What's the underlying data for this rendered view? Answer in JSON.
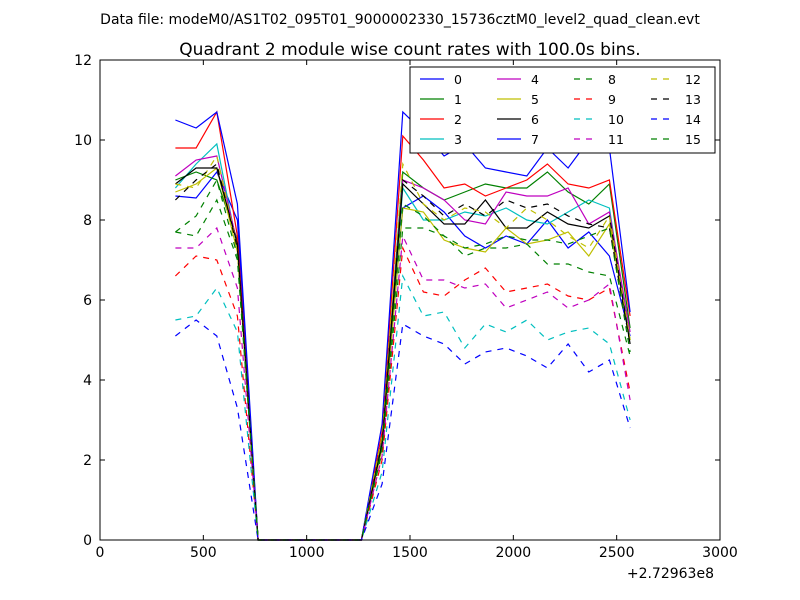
{
  "figure": {
    "suptitle": "Data file: modeM0/AS1T02_095T01_9000002330_15736cztM0_level2_quad_clean.evt",
    "title": "Quadrant 2 module wise count rates with 100.0s bins.",
    "offset_label": "+2.72963e8"
  },
  "chart_data": {
    "type": "line",
    "title": "Quadrant 2 module wise count rates with 100.0s bins.",
    "xlabel": "",
    "ylabel": "",
    "xlim": [
      0,
      3000
    ],
    "ylim": [
      0,
      12
    ],
    "x_offset": "+2.72963e8",
    "xticks": [
      0,
      500,
      1000,
      1500,
      2000,
      2500,
      3000
    ],
    "yticks": [
      0,
      2,
      4,
      6,
      8,
      10,
      12
    ],
    "grid": false,
    "legend_position": "top-right",
    "legend_columns": 4,
    "x": [
      365,
      465,
      565,
      665,
      765,
      865,
      965,
      1065,
      1165,
      1265,
      1365,
      1465,
      1565,
      1665,
      1765,
      1865,
      1965,
      2065,
      2165,
      2265,
      2365,
      2465,
      2565
    ],
    "series": [
      {
        "name": "0",
        "color": "#0000ff",
        "dash": "solid",
        "values": [
          8.6,
          8.55,
          9.2,
          8.0,
          0,
          0,
          0,
          0,
          0,
          0,
          2.5,
          8.3,
          8.6,
          8.2,
          7.6,
          7.3,
          7.6,
          7.4,
          8.0,
          7.3,
          7.7,
          7.1,
          5.1
        ]
      },
      {
        "name": "1",
        "color": "#008000",
        "dash": "solid",
        "values": [
          9.0,
          9.2,
          9.0,
          7.5,
          0,
          0,
          0,
          0,
          0,
          0,
          2.5,
          9.2,
          8.8,
          8.5,
          8.7,
          8.9,
          8.8,
          8.8,
          9.2,
          8.7,
          8.4,
          8.9,
          5.3
        ]
      },
      {
        "name": "2",
        "color": "#ff0000",
        "dash": "solid",
        "values": [
          9.8,
          9.8,
          10.7,
          7.6,
          0,
          0,
          0,
          0,
          0,
          0,
          2.7,
          10.1,
          9.5,
          8.8,
          8.9,
          8.6,
          8.8,
          9.0,
          9.4,
          8.9,
          8.8,
          9.0,
          5.6
        ]
      },
      {
        "name": "3",
        "color": "#00bfbf",
        "dash": "solid",
        "values": [
          8.8,
          9.4,
          9.9,
          7.3,
          0,
          0,
          0,
          0,
          0,
          0,
          2.4,
          8.8,
          8.0,
          8.0,
          8.2,
          8.1,
          8.3,
          8.0,
          7.9,
          8.2,
          8.5,
          8.3,
          5.0
        ]
      },
      {
        "name": "4",
        "color": "#bf00bf",
        "dash": "solid",
        "values": [
          9.1,
          9.5,
          9.6,
          7.4,
          0,
          0,
          0,
          0,
          0,
          0,
          2.4,
          9.0,
          8.8,
          8.5,
          8.0,
          7.9,
          8.7,
          8.6,
          8.6,
          8.8,
          7.9,
          8.2,
          5.2
        ]
      },
      {
        "name": "5",
        "color": "#bfbf00",
        "dash": "solid",
        "values": [
          8.7,
          8.9,
          9.3,
          7.2,
          0,
          0,
          0,
          0,
          0,
          0,
          2.3,
          8.3,
          8.2,
          7.5,
          7.3,
          7.2,
          7.8,
          7.4,
          7.5,
          7.7,
          7.1,
          7.9,
          5.0
        ]
      },
      {
        "name": "6",
        "color": "#000000",
        "dash": "solid",
        "values": [
          8.9,
          9.3,
          9.3,
          7.4,
          0,
          0,
          0,
          0,
          0,
          0,
          2.4,
          8.9,
          8.4,
          7.9,
          7.9,
          8.5,
          7.8,
          7.8,
          8.2,
          7.9,
          7.8,
          8.1,
          4.9
        ]
      },
      {
        "name": "7",
        "color": "#0000ff",
        "dash": "solid",
        "values": [
          10.5,
          10.3,
          10.7,
          8.4,
          0,
          0,
          0,
          0,
          0,
          0,
          2.9,
          10.7,
          10.2,
          9.6,
          9.9,
          9.3,
          9.2,
          9.1,
          9.8,
          9.3,
          10.0,
          9.8,
          5.7
        ]
      },
      {
        "name": "8",
        "color": "#008000",
        "dash": "dashed",
        "values": [
          7.7,
          7.6,
          8.5,
          7.0,
          0,
          0,
          0,
          0,
          0,
          0,
          2.2,
          7.8,
          7.8,
          7.6,
          7.1,
          7.3,
          7.3,
          7.4,
          6.9,
          6.9,
          6.7,
          6.6,
          4.6
        ]
      },
      {
        "name": "9",
        "color": "#ff0000",
        "dash": "dashed",
        "values": [
          6.6,
          7.1,
          7.0,
          5.6,
          0,
          0,
          0,
          0,
          0,
          0,
          2.0,
          7.3,
          6.2,
          6.1,
          6.5,
          6.8,
          6.2,
          6.3,
          6.4,
          6.1,
          6.0,
          6.3,
          3.7
        ]
      },
      {
        "name": "10",
        "color": "#00bfbf",
        "dash": "dashed",
        "values": [
          5.5,
          5.6,
          6.3,
          5.2,
          0,
          0,
          0,
          0,
          0,
          0,
          1.7,
          6.6,
          5.6,
          5.7,
          4.8,
          5.4,
          5.2,
          5.5,
          5.0,
          5.2,
          5.3,
          4.9,
          3.0
        ]
      },
      {
        "name": "11",
        "color": "#bf00bf",
        "dash": "dashed",
        "values": [
          7.3,
          7.3,
          7.8,
          6.3,
          0,
          0,
          0,
          0,
          0,
          0,
          2.1,
          7.6,
          6.5,
          6.5,
          6.3,
          6.4,
          5.8,
          6.0,
          6.2,
          5.8,
          6.0,
          6.4,
          3.5
        ]
      },
      {
        "name": "12",
        "color": "#bfbf00",
        "dash": "dashed",
        "values": [
          8.9,
          8.8,
          9.6,
          7.3,
          0,
          0,
          0,
          0,
          0,
          0,
          2.6,
          9.4,
          8.4,
          8.0,
          8.3,
          8.2,
          7.8,
          8.3,
          8.0,
          7.6,
          7.3,
          8.1,
          5.0
        ]
      },
      {
        "name": "13",
        "color": "#000000",
        "dash": "dashed",
        "values": [
          8.5,
          9.0,
          9.4,
          7.3,
          0,
          0,
          0,
          0,
          0,
          0,
          2.4,
          9.0,
          8.6,
          8.1,
          8.4,
          8.1,
          8.5,
          8.3,
          8.4,
          8.1,
          7.9,
          7.8,
          4.9
        ]
      },
      {
        "name": "14",
        "color": "#0000ff",
        "dash": "dashed",
        "values": [
          5.1,
          5.5,
          5.1,
          3.3,
          0,
          0,
          0,
          0,
          0,
          0,
          1.4,
          5.4,
          5.1,
          4.9,
          4.4,
          4.7,
          4.8,
          4.6,
          4.3,
          4.9,
          4.2,
          4.5,
          2.8
        ]
      },
      {
        "name": "15",
        "color": "#008000",
        "dash": "dashed",
        "values": [
          7.7,
          8.1,
          9.0,
          7.1,
          0,
          0,
          0,
          0,
          0,
          0,
          2.3,
          8.4,
          8.1,
          7.6,
          7.3,
          7.4,
          7.6,
          7.5,
          7.5,
          7.4,
          7.6,
          7.8,
          4.7
        ]
      }
    ]
  }
}
